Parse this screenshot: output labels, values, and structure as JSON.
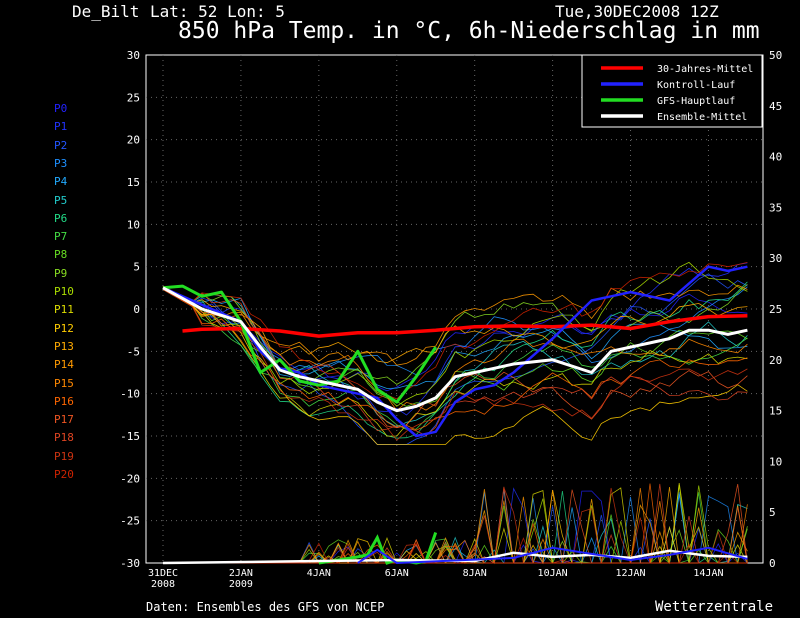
{
  "header": {
    "location": "De_Bilt",
    "coords": "Lat: 52 Lon: 5",
    "run_time": "Tue,30DEC2008 12Z"
  },
  "footer": {
    "source": "Daten: Ensembles des GFS von NCEP",
    "brand": "Wetterzentrale"
  },
  "chart_data": {
    "type": "line",
    "title": "850 hPa Temp. in °C, 6h-Niederschlag in mm",
    "x_start": "2008-12-31",
    "x_end": "2009-01-15",
    "x_tick_labels": [
      [
        "31DEC",
        "2008"
      ],
      [
        "2JAN",
        "2009"
      ],
      [
        "4JAN",
        ""
      ],
      [
        "6JAN",
        ""
      ],
      [
        "8JAN",
        ""
      ],
      [
        "10JAN",
        ""
      ],
      [
        "12JAN",
        ""
      ],
      [
        "14JAN",
        ""
      ]
    ],
    "y_left": {
      "range": [
        -30,
        30
      ],
      "ticks": [
        -30,
        -25,
        -20,
        -15,
        -10,
        -5,
        0,
        5,
        10,
        15,
        20,
        25,
        30
      ]
    },
    "y_right": {
      "range": [
        0,
        50
      ],
      "ticks": [
        0,
        5,
        10,
        15,
        20,
        25,
        30,
        35,
        40,
        45,
        50
      ]
    },
    "grid": true,
    "legend_placement": "top-right",
    "legend": [
      {
        "name": "30-Jahres-Mittel",
        "color": "#ff0000"
      },
      {
        "name": "Kontroll-Lauf",
        "color": "#2222ff"
      },
      {
        "name": "GFS-Hauptlauf",
        "color": "#22dd22"
      },
      {
        "name": "Ensemble-Mittel",
        "color": "#ffffff"
      }
    ],
    "members": [
      {
        "name": "P0",
        "color": "#2222ff"
      },
      {
        "name": "P1",
        "color": "#2233ff"
      },
      {
        "name": "P2",
        "color": "#2255ff"
      },
      {
        "name": "P3",
        "color": "#1e90ff"
      },
      {
        "name": "P4",
        "color": "#22aaff"
      },
      {
        "name": "P5",
        "color": "#22cccc"
      },
      {
        "name": "P6",
        "color": "#22dd88"
      },
      {
        "name": "P7",
        "color": "#44dd44"
      },
      {
        "name": "P8",
        "color": "#66dd22"
      },
      {
        "name": "P9",
        "color": "#88dd22"
      },
      {
        "name": "P10",
        "color": "#aadd00"
      },
      {
        "name": "P11",
        "color": "#dddd00"
      },
      {
        "name": "P12",
        "color": "#ffcc00"
      },
      {
        "name": "P13",
        "color": "#ffaa00"
      },
      {
        "name": "P14",
        "color": "#ff9900"
      },
      {
        "name": "P15",
        "color": "#ff8800"
      },
      {
        "name": "P16",
        "color": "#ff6600"
      },
      {
        "name": "P17",
        "color": "#ee5522"
      },
      {
        "name": "P18",
        "color": "#dd4422"
      },
      {
        "name": "P19",
        "color": "#cc3311"
      },
      {
        "name": "P20",
        "color": "#cc2200"
      }
    ],
    "series": [
      {
        "name": "30-Jahres-Mittel",
        "color": "#ff0000",
        "width": 3.5,
        "x": [
          "2008-12-31T12",
          "2009-01-01",
          "2009-01-02",
          "2009-01-03",
          "2009-01-04",
          "2009-01-05",
          "2009-01-06",
          "2009-01-07",
          "2009-01-08",
          "2009-01-09",
          "2009-01-10",
          "2009-01-11",
          "2009-01-12",
          "2009-01-13",
          "2009-01-14",
          "2009-01-15"
        ],
        "y": [
          -2.6,
          -2.4,
          -2.3,
          -2.6,
          -3.2,
          -2.8,
          -2.8,
          -2.5,
          -2.1,
          -2.0,
          -2.1,
          -1.9,
          -2.3,
          -1.5,
          -0.9,
          -0.8
        ]
      },
      {
        "name": "Kontroll-Lauf",
        "color": "#2222ff",
        "width": 2.5,
        "x": [
          "2008-12-31",
          "2009-01-01",
          "2009-01-02",
          "2009-01-02T12",
          "2009-01-03",
          "2009-01-03T12",
          "2009-01-04",
          "2009-01-05",
          "2009-01-05T12",
          "2009-01-06",
          "2009-01-06T12",
          "2009-01-07",
          "2009-01-07T12",
          "2009-01-08",
          "2009-01-08T12",
          "2009-01-09",
          "2009-01-09T12",
          "2009-01-10",
          "2009-01-11",
          "2009-01-11T12",
          "2009-01-12",
          "2009-01-12T12",
          "2009-01-13",
          "2009-01-13T12",
          "2009-01-14",
          "2009-01-14T12",
          "2009-01-15"
        ],
        "y": [
          2.5,
          0.5,
          -1.5,
          -5,
          -7,
          -7.5,
          -9,
          -10,
          -10.5,
          -13,
          -15,
          -14.5,
          -11,
          -9.5,
          -9,
          -7.5,
          -5.5,
          -3.5,
          1,
          1.5,
          2,
          1.5,
          1,
          3,
          5,
          4.5,
          5
        ]
      },
      {
        "name": "GFS-Hauptlauf",
        "color": "#22dd22",
        "width": 3.0,
        "x": [
          "2008-12-31",
          "2008-12-31T12",
          "2009-01-01",
          "2009-01-01T12",
          "2009-01-02",
          "2009-01-02T12",
          "2009-01-03",
          "2009-01-03T12",
          "2009-01-04",
          "2009-01-04T12",
          "2009-01-05",
          "2009-01-05T12",
          "2009-01-06",
          "2009-01-06T12",
          "2009-01-07"
        ],
        "y": [
          2.5,
          2.7,
          1.5,
          2.0,
          -1.5,
          -7.5,
          -6.0,
          -8.5,
          -9.0,
          -8.5,
          -5.0,
          -9.5,
          -11.0,
          -8.0,
          -4.5
        ]
      },
      {
        "name": "Ensemble-Mittel",
        "color": "#ffffff",
        "width": 3.0,
        "x": [
          "2008-12-31",
          "2009-01-01",
          "2009-01-02",
          "2009-01-02T12",
          "2009-01-03",
          "2009-01-03T12",
          "2009-01-04",
          "2009-01-05",
          "2009-01-05T12",
          "2009-01-06",
          "2009-01-06T12",
          "2009-01-07",
          "2009-01-07T12",
          "2009-01-08",
          "2009-01-08T12",
          "2009-01-09",
          "2009-01-10",
          "2009-01-11",
          "2009-01-11T12",
          "2009-01-12",
          "2009-01-12T12",
          "2009-01-13",
          "2009-01-13T12",
          "2009-01-14",
          "2009-01-14T12",
          "2009-01-15"
        ],
        "y": [
          2.5,
          0,
          -1.5,
          -4.5,
          -7.2,
          -8,
          -8.5,
          -9.5,
          -11,
          -12,
          -11.5,
          -10.5,
          -8,
          -7.5,
          -7,
          -6.5,
          -6,
          -7.5,
          -5,
          -4.5,
          -4,
          -3.5,
          -2.5,
          -2.5,
          -3,
          -2.5
        ]
      }
    ],
    "precip_series": [
      {
        "name": "GFS-Hauptlauf",
        "color": "#22dd22",
        "width": 3.0,
        "x": [
          "2009-01-04",
          "2009-01-04T12",
          "2009-01-05",
          "2009-01-05T06",
          "2009-01-05T12",
          "2009-01-05T18",
          "2009-01-06",
          "2009-01-06T12",
          "2009-01-06T18",
          "2009-01-07"
        ],
        "y": [
          0,
          0.3,
          0.6,
          0.8,
          2.5,
          0,
          0.3,
          0,
          0.2,
          3.0
        ]
      },
      {
        "name": "Ensemble-Mittel",
        "color": "#ffffff",
        "width": 2.5,
        "x": [
          "2008-12-31",
          "2009-01-04",
          "2009-01-06",
          "2009-01-08",
          "2009-01-09",
          "2009-01-10",
          "2009-01-11",
          "2009-01-12",
          "2009-01-13",
          "2009-01-14",
          "2009-01-15"
        ],
        "y": [
          0,
          0.2,
          0.3,
          0.2,
          1.0,
          0.6,
          0.8,
          0.5,
          1.2,
          0.7,
          0.6
        ]
      },
      {
        "name": "Kontroll-Lauf",
        "color": "#2222ff",
        "width": 2.0,
        "x": [
          "2009-01-05",
          "2009-01-05T12",
          "2009-01-06",
          "2009-01-09",
          "2009-01-10",
          "2009-01-12",
          "2009-01-13",
          "2009-01-14",
          "2009-01-15"
        ],
        "y": [
          0,
          1.3,
          0,
          0.5,
          1.5,
          0.3,
          0.8,
          1.5,
          0.4
        ]
      }
    ]
  }
}
